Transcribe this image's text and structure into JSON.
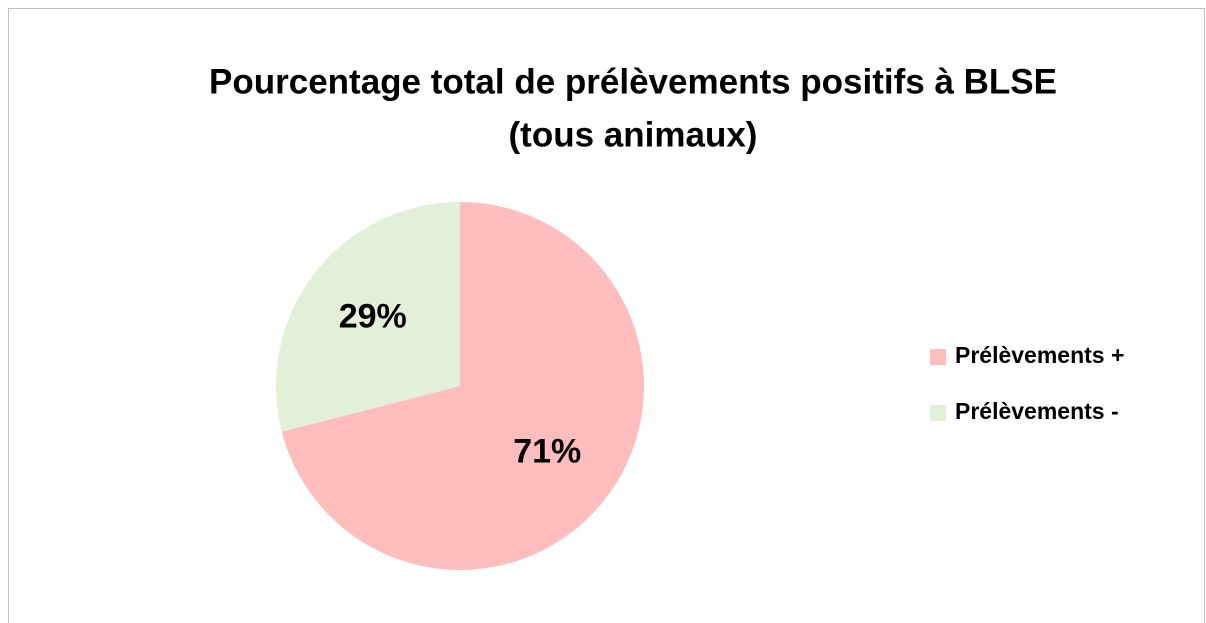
{
  "chart_data": {
    "type": "pie",
    "title": [
      "Pourcentage total de prélèvements positifs à BLSE",
      "(tous animaux)"
    ],
    "categories": [
      "Prélèvements +",
      "Prélèvements -"
    ],
    "values": [
      71,
      29
    ],
    "value_labels": [
      "71%",
      "29%"
    ],
    "colors": [
      "#ffbdbd",
      "#e2efd9"
    ],
    "legend": "right"
  }
}
